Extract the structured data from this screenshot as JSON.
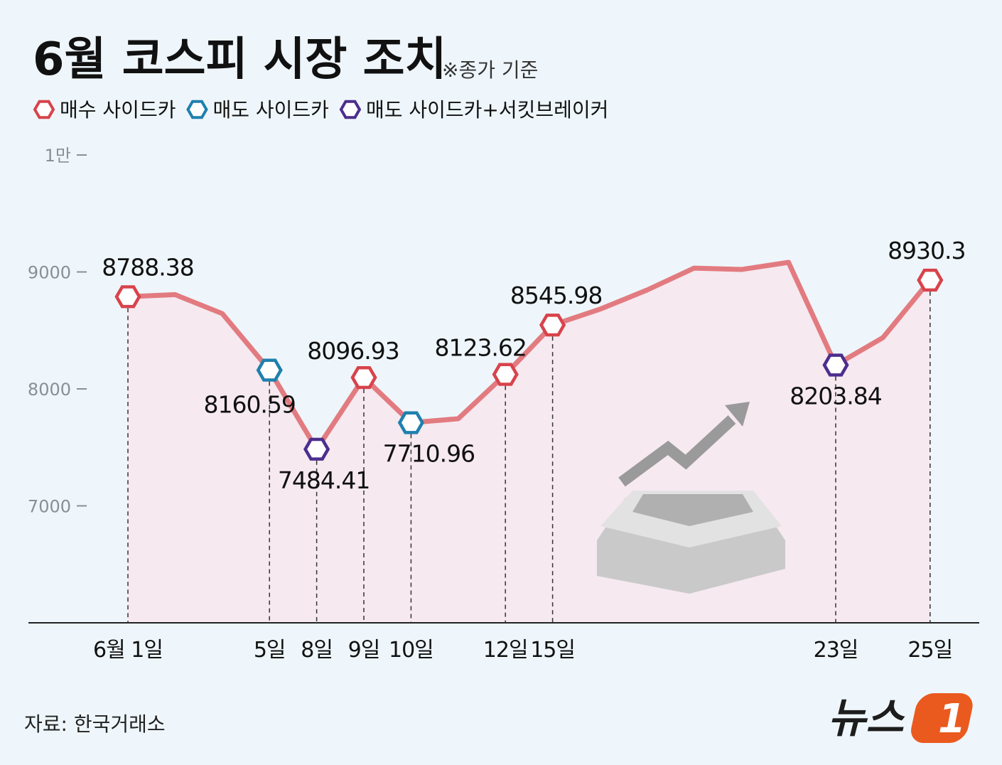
{
  "chart_data": {
    "type": "line",
    "title": "6월 코스피 시장 조치",
    "subtitle": "※종가 기준",
    "source": "자료: 한국거래소",
    "logo": {
      "text": "뉴스",
      "mark": "1"
    },
    "categories": [
      "6월 1일",
      null,
      null,
      "5일",
      "8일",
      "9일",
      "10일",
      null,
      "12일",
      "15일",
      null,
      null,
      null,
      null,
      null,
      "23일",
      null,
      "25일"
    ],
    "line_color": "#e27b80",
    "area_color": "#f6e9f0",
    "values": [
      null,
      8806,
      8644,
      null,
      null,
      null,
      null,
      7745,
      null,
      null,
      8681,
      8845,
      9033,
      9021,
      9082,
      null,
      8438,
      null
    ],
    "series": [
      {
        "name": "매수 사이드카",
        "color": "#d8434b",
        "values": [
          8788.38,
          null,
          null,
          null,
          null,
          8096.93,
          null,
          null,
          8123.62,
          8545.98,
          null,
          null,
          null,
          null,
          null,
          null,
          null,
          8930.3
        ]
      },
      {
        "name": "매도 사이드카",
        "color": "#1f80ae",
        "values": [
          null,
          null,
          null,
          8160.59,
          null,
          null,
          7710.96,
          null,
          null,
          null,
          null,
          null,
          null,
          null,
          null,
          null,
          null,
          null
        ]
      },
      {
        "name": "매도 사이드카+서킷브레이커",
        "color": "#4c2e8e",
        "values": [
          null,
          null,
          null,
          null,
          7484.41,
          null,
          null,
          null,
          null,
          null,
          null,
          null,
          null,
          null,
          null,
          8203.84,
          null,
          null
        ]
      }
    ],
    "ylim": [
      6000,
      10000
    ],
    "yticks": [
      {
        "value": 10000,
        "label": "1만"
      },
      9000,
      8000,
      7000
    ]
  }
}
